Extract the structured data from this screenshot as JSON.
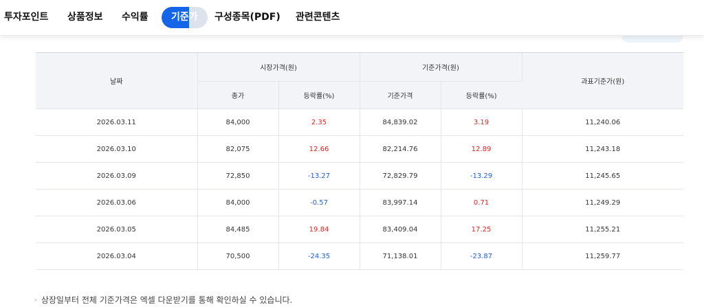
{
  "tabs": [
    {
      "label": "투자포인트",
      "active": false
    },
    {
      "label": "상품정보",
      "active": false
    },
    {
      "label": "수익률",
      "active": false
    },
    {
      "label": "기준가",
      "active": true
    },
    {
      "label": "구성종목(PDF)",
      "active": false
    },
    {
      "label": "관련콘텐츠",
      "active": false
    }
  ],
  "table": {
    "headers": {
      "date": "날짜",
      "market_price_group": "시장가격(원)",
      "nav_group": "기준가격(원)",
      "tax_base": "과표기준가(원)",
      "close": "종가",
      "market_change": "등락률(%)",
      "nav": "기준가격",
      "nav_change": "등락률(%)"
    },
    "rows": [
      {
        "date": "2026.03.11",
        "close": "84,000",
        "market_change": "2.35",
        "market_dir": "up",
        "nav": "84,839.02",
        "nav_change": "3.19",
        "nav_dir": "up",
        "tax_base": "11,240.06"
      },
      {
        "date": "2026.03.10",
        "close": "82,075",
        "market_change": "12.66",
        "market_dir": "up",
        "nav": "82,214.76",
        "nav_change": "12.89",
        "nav_dir": "up",
        "tax_base": "11,243.18"
      },
      {
        "date": "2026.03.09",
        "close": "72,850",
        "market_change": "-13.27",
        "market_dir": "down",
        "nav": "72,829.79",
        "nav_change": "-13.29",
        "nav_dir": "down",
        "tax_base": "11,245.65"
      },
      {
        "date": "2026.03.06",
        "close": "84,000",
        "market_change": "-0.57",
        "market_dir": "down",
        "nav": "83,997.14",
        "nav_change": "0.71",
        "nav_dir": "up",
        "tax_base": "11,249.29"
      },
      {
        "date": "2026.03.05",
        "close": "84,485",
        "market_change": "19.84",
        "market_dir": "up",
        "nav": "83,409.04",
        "nav_change": "17.25",
        "nav_dir": "up",
        "tax_base": "11,255.21"
      },
      {
        "date": "2026.03.04",
        "close": "70,500",
        "market_change": "-24.35",
        "market_dir": "down",
        "nav": "71,138.01",
        "nav_change": "-23.87",
        "nav_dir": "down",
        "tax_base": "11,259.77"
      }
    ]
  },
  "note": "상장일부터 전체 기준가격은 엑셀 다운받기를 통해 확인하실 수 있습니다.",
  "colors": {
    "up": "#e02020",
    "down": "#1f5bd8",
    "active_tab": "#1565e8"
  }
}
